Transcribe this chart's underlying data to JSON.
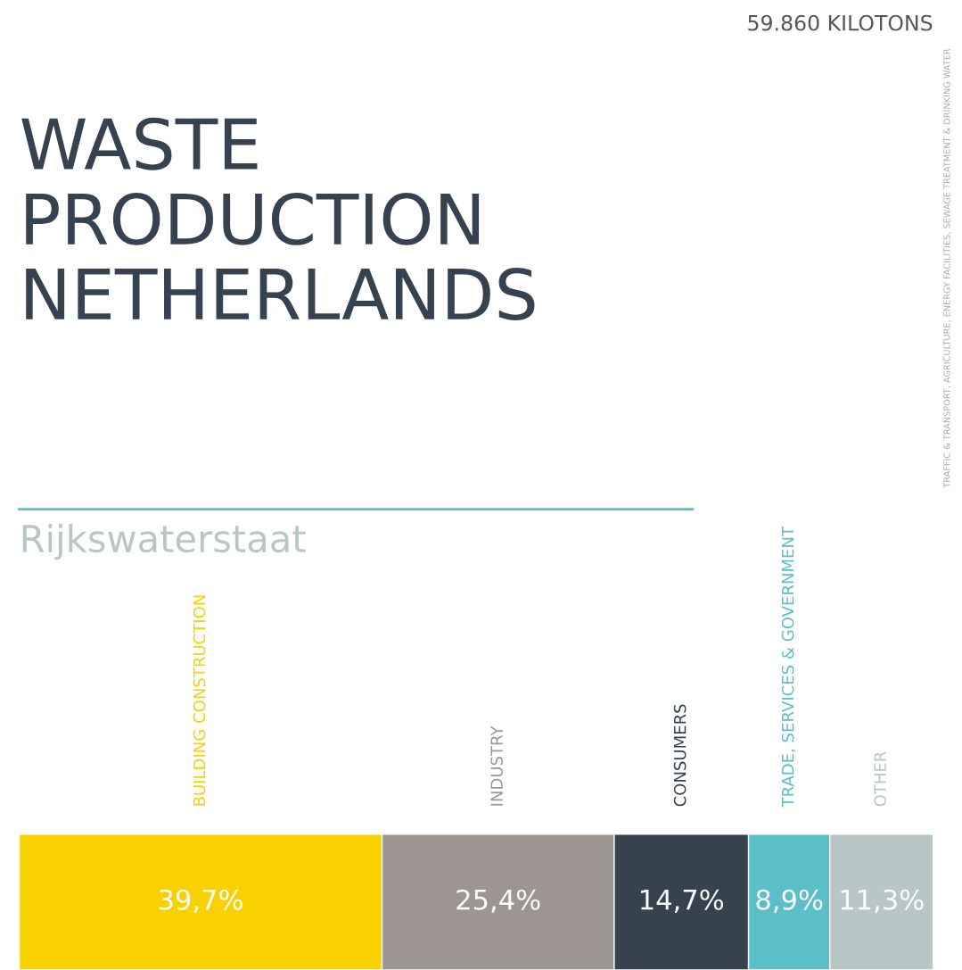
{
  "chart_data": {
    "type": "bar",
    "stacked": true,
    "orientation": "horizontal",
    "title": "WASTE PRODUCTION NETHERLANDS",
    "subtitle": "Rijkswaterstaat",
    "annotations": [
      "59.860 KILOTONS",
      "TRAFFIC & TRANSPORT, AGRICULTURE, ENERGY FACILITIES, SEWAGE TREATMENT & DRINKING WATER"
    ],
    "categories": [
      null
    ],
    "series": [
      {
        "name": "BUILDING CONSTRUCTION",
        "color": "#f9d000",
        "values": [
          39.7
        ],
        "value_labels": [
          "39,7%"
        ]
      },
      {
        "name": "INDUSTRY",
        "color": "#9c9592",
        "values": [
          25.4
        ],
        "value_labels": [
          "25,4%"
        ]
      },
      {
        "name": "CONSUMERS",
        "color": "#36424f",
        "values": [
          14.7
        ],
        "value_labels": [
          "14,7%"
        ]
      },
      {
        "name": "TRADE, SERVICES & GOVERNMENT",
        "color": "#5bbfc9",
        "values": [
          8.9
        ],
        "value_labels": [
          "8,9%"
        ]
      },
      {
        "name": "OTHER",
        "color": "#b8c6c6",
        "values": [
          11.3
        ],
        "value_labels": [
          "11,3%"
        ]
      }
    ],
    "xlim": [
      0,
      100
    ],
    "tick_labels": false,
    "grid": false,
    "legend": false
  }
}
